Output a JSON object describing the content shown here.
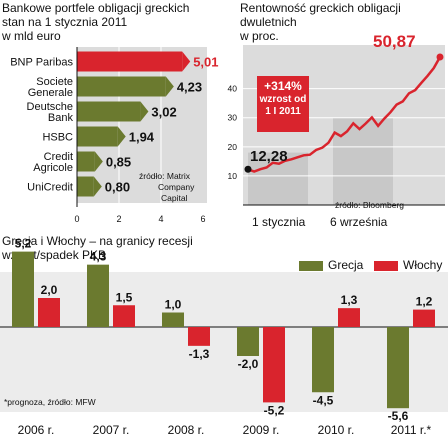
{
  "colors": {
    "olive": "#6b7a2f",
    "olive_dark": "#4a5620",
    "red": "#d9242d",
    "red_light": "#f2888c",
    "panel_gray": "#bfbfbf",
    "bg_gray": "#dcdcdc",
    "white": "#ffffff"
  },
  "panel1": {
    "title_lines": [
      "Bankowe portfele obligacji greckich",
      "stan na 1 stycznia 2011",
      "w mld euro"
    ],
    "source_lines": [
      "źródło: Matrix",
      "Company",
      "Capital"
    ],
    "chart_data": {
      "type": "bar",
      "orientation": "horizontal",
      "categories": [
        "BNP Paribas",
        "Societe Generale",
        "Deutsche Bank",
        "HSBC",
        "Credit Agricole",
        "UniCredit"
      ],
      "category_labels": [
        [
          "BNP Paribas"
        ],
        [
          "Societe",
          "Generale"
        ],
        [
          "Deutsche",
          "Bank"
        ],
        [
          "HSBC"
        ],
        [
          "Credit",
          "Agricole"
        ],
        [
          "UniCredit"
        ]
      ],
      "values": [
        5.01,
        4.23,
        3.02,
        1.94,
        0.85,
        0.8
      ],
      "value_labels": [
        "5,01",
        "4,23",
        "3,02",
        "1,94",
        "0,85",
        "0,80"
      ],
      "xlim": [
        0,
        6
      ],
      "x_ticks": [
        "0",
        "2",
        "4",
        "6"
      ]
    }
  },
  "panel2": {
    "title_lines": [
      "Rentowność greckich obligacji",
      "dwuletnich",
      "w proc."
    ],
    "start_value_label": "12,28",
    "end_value_label": "50,87",
    "annotation_lines": [
      "+314%",
      "wzrost od",
      "1 I 2011"
    ],
    "source": "źródło: Bloomberg",
    "x_labels": [
      "1 stycznia",
      "6 września"
    ],
    "chart_data": {
      "type": "line",
      "series": [
        {
          "values": [
            12.28,
            11.5,
            12.3,
            12.9,
            14.5,
            14.2,
            15.2,
            15.7,
            16.4,
            17.1,
            17.3,
            18.9,
            19.7,
            21.4,
            24.9,
            23.7,
            25.3,
            28.1,
            26.1,
            28.0,
            30.1,
            27.2,
            29.7,
            31.9,
            34.5,
            35.6,
            38.4,
            39.5,
            42.0,
            44.4,
            47.1,
            50.87
          ]
        }
      ],
      "ylim": [
        0,
        55
      ],
      "y_ticks": [
        "10",
        "20",
        "30",
        "40"
      ],
      "y_tick_values": [
        10,
        20,
        30,
        40
      ]
    }
  },
  "panel3": {
    "title_lines": [
      "Grecja i Włochy – na granicy recesji",
      "wzrost/spadek PKB"
    ],
    "legend": [
      "Grecja",
      "Włochy"
    ],
    "note": "*prognoza, źródło: MFW",
    "chart_data": {
      "type": "bar",
      "categories": [
        "2006 r.",
        "2007 r.",
        "2008 r.",
        "2009 r.",
        "2010 r.",
        "2011 r.*"
      ],
      "series": [
        {
          "name": "Grecja",
          "values": [
            5.2,
            4.3,
            1.0,
            -2.0,
            -4.5,
            -5.6
          ],
          "labels": [
            "5,2",
            "4,3",
            "1,0",
            "-2,0",
            "-4,5",
            "-5,6"
          ]
        },
        {
          "name": "Włochy",
          "values": [
            2.0,
            1.5,
            -1.3,
            -5.2,
            1.3,
            1.2
          ],
          "labels": [
            "2,0",
            "1,5",
            "-1,3",
            "-5,2",
            "1,3",
            "1,2"
          ]
        }
      ],
      "ylim": [
        -6,
        6
      ]
    }
  }
}
